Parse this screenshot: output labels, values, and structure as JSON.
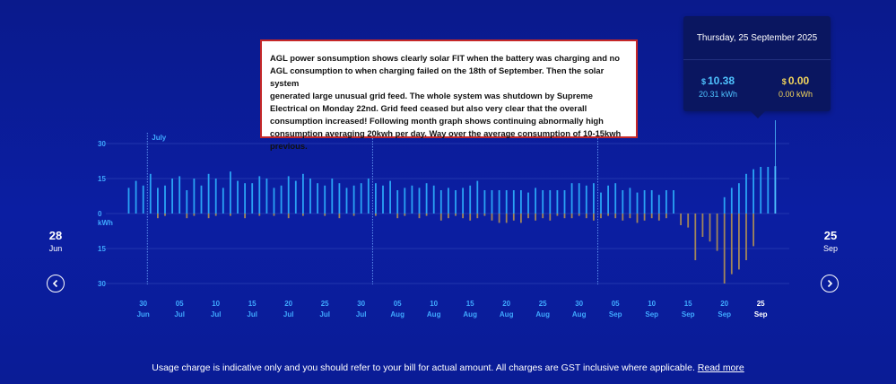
{
  "range": {
    "start_day": "28",
    "start_month": "Jun",
    "end_day": "25",
    "end_month": "Sep"
  },
  "tooltip": {
    "date": "Thursday, 25 September 2025",
    "usage": {
      "currency": "$",
      "amount": "10.38",
      "kwh": "20.31 kWh"
    },
    "feed": {
      "currency": "$",
      "amount": "0.00",
      "kwh": "0.00 kWh"
    }
  },
  "annotation": "AGL power sonsumption shows clearly solar FIT when the battery was charging and no AGL consumption to when charging failed on the 18th of September. Then the solar system\n generated large unusual grid feed. The whole system was shutdown by Supreme Electrical on Monday 22nd. Grid feed ceased but also very clear that the overall consumption increased! Following month graph shows continuing abnormally high consumption averaging 20kwh per day. Way over the average consumption of 10-15kwh previous.",
  "footer": {
    "text": "Usage charge is indicative only and you should refer to your bill for actual amount. All charges are GST inclusive where applicable.",
    "link": "Read more"
  },
  "colors": {
    "usage": "#2aa3f5",
    "usage_selected": "#4fc3ff",
    "feed": "#a2865a",
    "grid": "#2a3fb3",
    "month_line": "#6fa8ff",
    "tick": "#3fa9ff"
  },
  "chart_data": {
    "type": "bar",
    "ylabel": "kWh",
    "ylim": [
      -30,
      30
    ],
    "y_ticks": [
      30,
      15,
      0,
      15,
      30
    ],
    "x_ticks": [
      {
        "day": "30",
        "month": "Jun"
      },
      {
        "day": "05",
        "month": "Jul"
      },
      {
        "day": "10",
        "month": "Jul"
      },
      {
        "day": "15",
        "month": "Jul"
      },
      {
        "day": "20",
        "month": "Jul"
      },
      {
        "day": "25",
        "month": "Jul"
      },
      {
        "day": "30",
        "month": "Jul"
      },
      {
        "day": "05",
        "month": "Aug"
      },
      {
        "day": "10",
        "month": "Aug"
      },
      {
        "day": "15",
        "month": "Aug"
      },
      {
        "day": "20",
        "month": "Aug"
      },
      {
        "day": "25",
        "month": "Aug"
      },
      {
        "day": "30",
        "month": "Aug"
      },
      {
        "day": "05",
        "month": "Sep"
      },
      {
        "day": "10",
        "month": "Sep"
      },
      {
        "day": "15",
        "month": "Sep"
      },
      {
        "day": "20",
        "month": "Sep"
      },
      {
        "day": "25",
        "month": "Sep"
      }
    ],
    "month_markers": [
      {
        "label": "July",
        "start_index": 3
      },
      {
        "label": "",
        "start_index": 34
      },
      {
        "label": "",
        "start_index": 65
      }
    ],
    "selected_index": 89,
    "series": [
      {
        "name": "usage",
        "values": [
          11,
          14,
          12,
          17,
          11,
          12,
          15,
          16,
          10,
          15,
          12,
          17,
          15,
          11,
          18,
          14,
          13,
          13,
          16,
          15,
          11,
          12,
          16,
          14,
          17,
          15,
          13,
          12,
          15,
          13,
          11,
          12,
          13,
          15,
          13,
          12,
          14,
          10,
          11,
          12,
          11,
          13,
          12,
          10,
          11,
          10,
          11,
          12,
          14,
          10,
          10,
          10,
          10,
          10,
          10,
          9,
          11,
          10,
          10,
          10,
          10,
          13,
          13,
          12,
          13,
          9,
          12,
          13,
          10,
          11,
          9,
          10,
          10,
          8,
          10,
          10,
          0,
          0,
          0,
          0,
          0,
          0,
          7,
          11,
          13,
          17,
          19,
          20,
          20,
          20.31
        ]
      },
      {
        "name": "feed",
        "values": [
          0,
          0,
          0,
          0,
          -2,
          -1,
          0,
          0,
          -2,
          -1,
          0,
          -2,
          -1,
          0,
          -1,
          0,
          -2,
          0,
          -1,
          0,
          -1,
          0,
          -2,
          0,
          -1,
          0,
          0,
          -1,
          0,
          -2,
          0,
          -1,
          0,
          0,
          -1,
          0,
          0,
          -2,
          -1,
          0,
          -2,
          -1,
          0,
          -3,
          -2,
          -1,
          -2,
          -3,
          -2,
          -1,
          -3,
          -4,
          -4,
          -3,
          -4,
          -2,
          -3,
          -2,
          -3,
          -1,
          -2,
          -2,
          -1,
          -2,
          -3,
          -2,
          -1,
          -2,
          -3,
          -2,
          -4,
          -3,
          -2,
          -3,
          -2,
          0,
          -5,
          -6,
          -20,
          -10,
          -12,
          -16,
          -30,
          -26,
          -24,
          -20,
          -14,
          0,
          0,
          0
        ]
      }
    ]
  }
}
